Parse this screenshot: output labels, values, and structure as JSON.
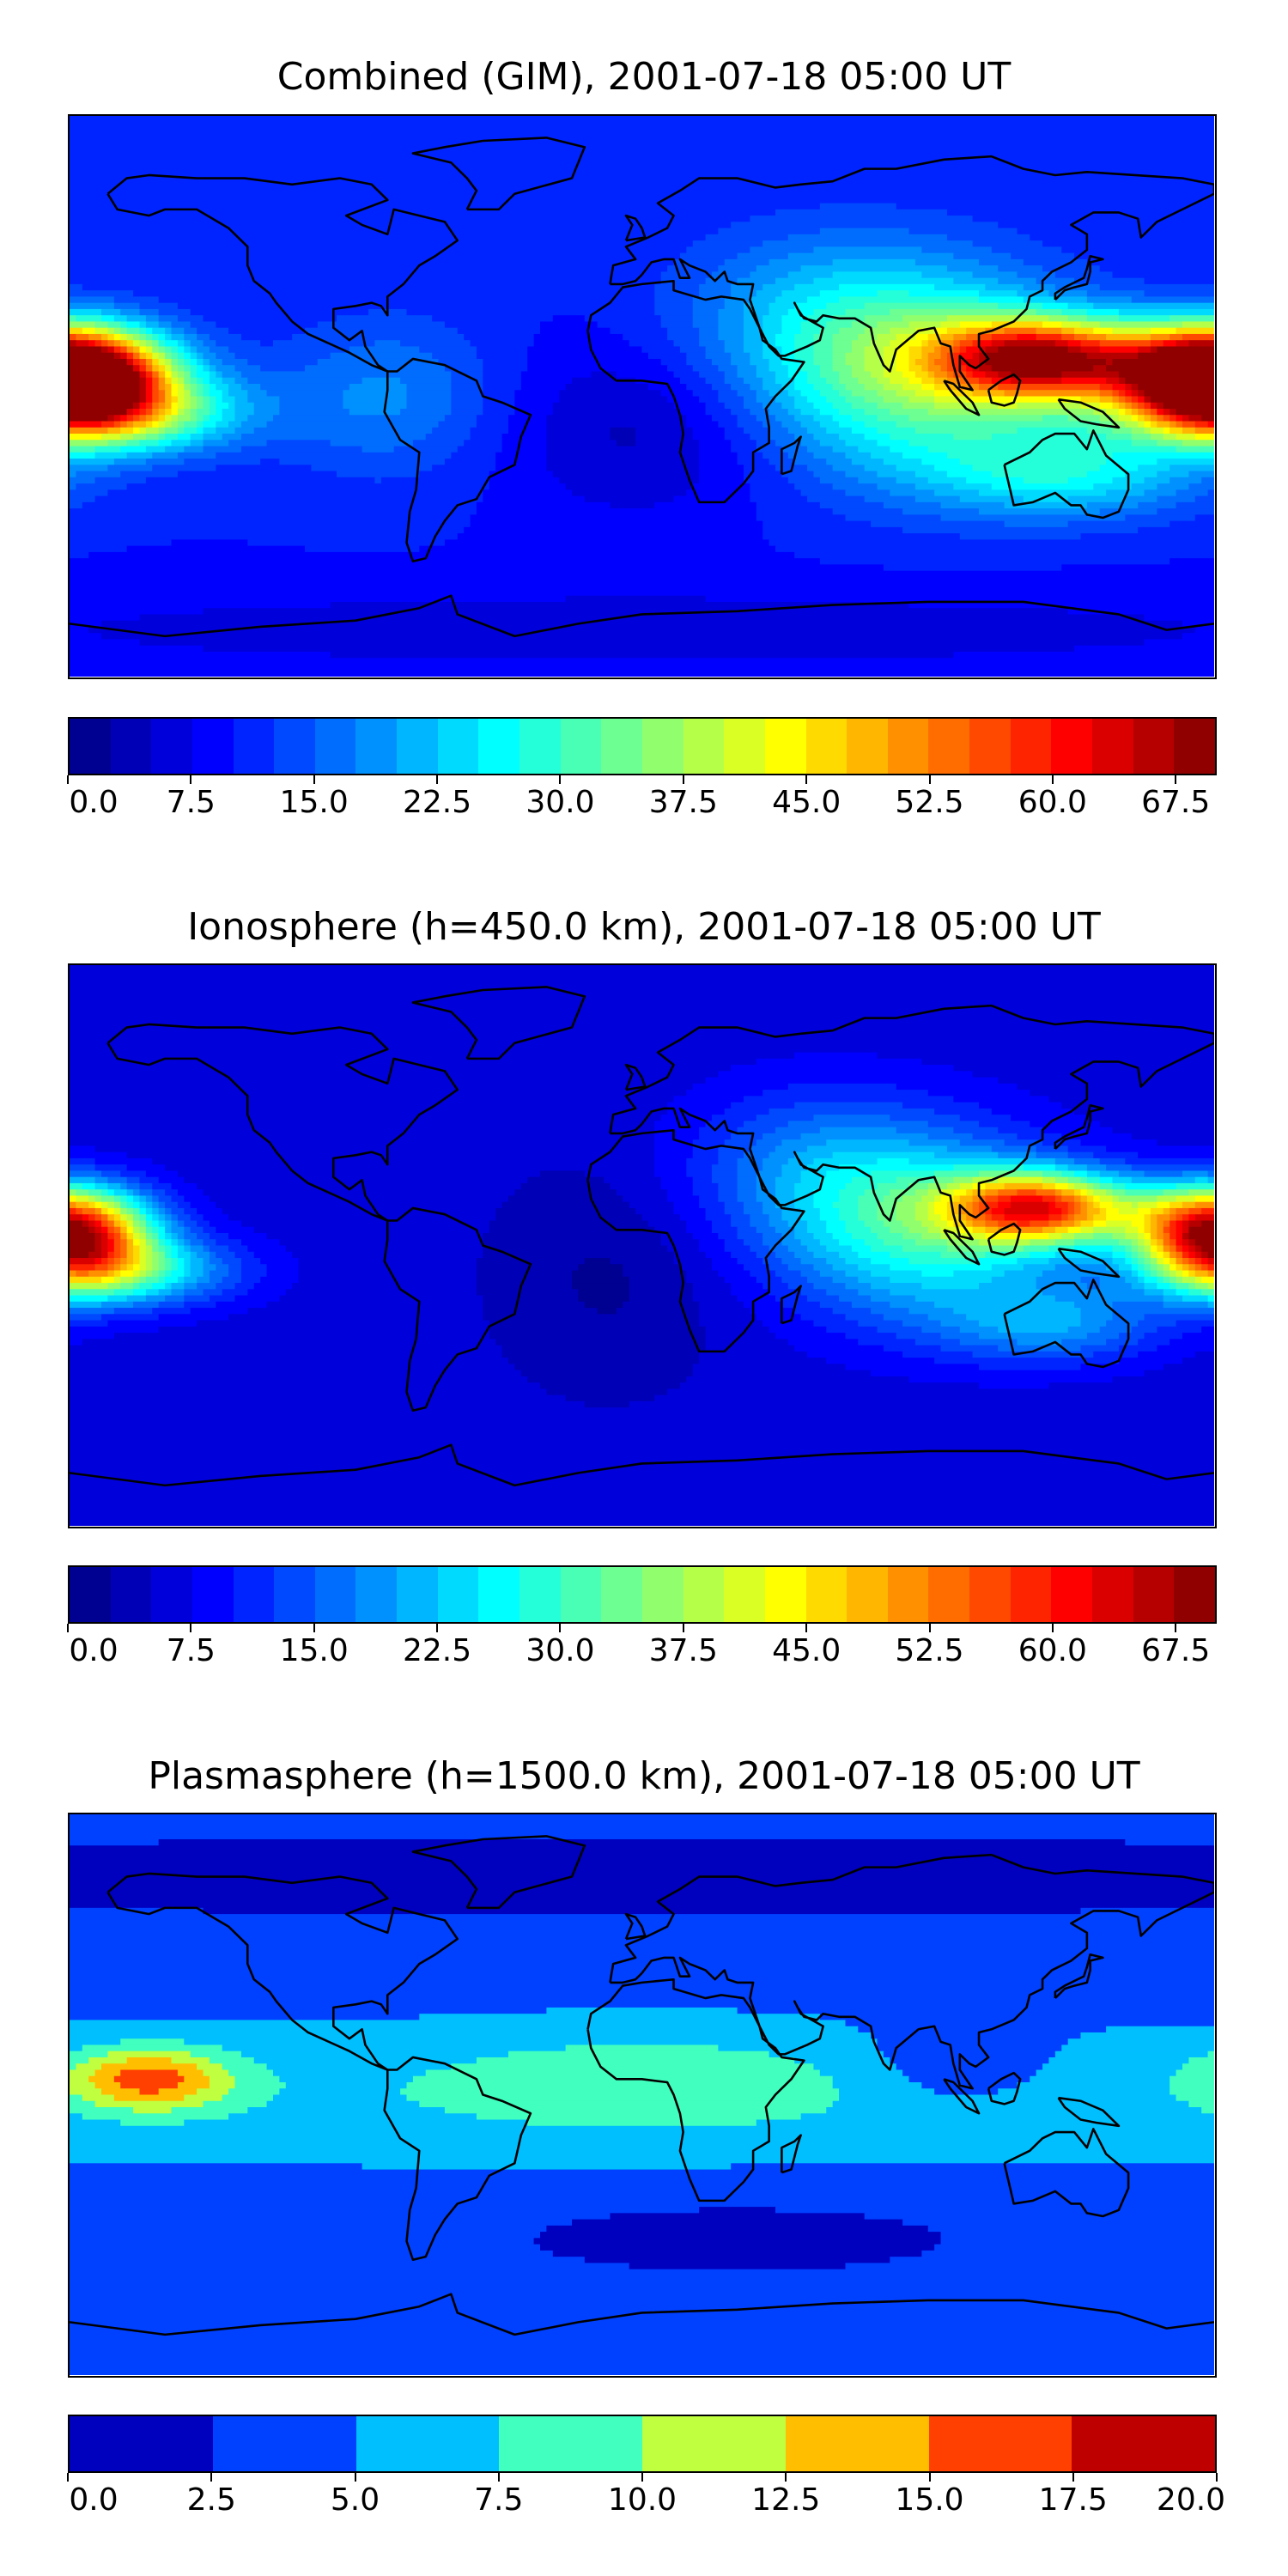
{
  "panels": [
    {
      "title": "Combined (GIM), 2001-07-18 05:00 UT",
      "colorbar": {
        "min": 0,
        "max": 70,
        "levels": 28,
        "tick_labels": [
          "0.0",
          "7.5",
          "15.0",
          "22.5",
          "30.0",
          "37.5",
          "45.0",
          "52.5",
          "60.0",
          "67.5"
        ]
      }
    },
    {
      "title": "Ionosphere  (h=450.0 km), 2001-07-18 05:00 UT",
      "colorbar": {
        "min": 0,
        "max": 70,
        "levels": 28,
        "tick_labels": [
          "0.0",
          "7.5",
          "15.0",
          "22.5",
          "30.0",
          "37.5",
          "45.0",
          "52.5",
          "60.0",
          "67.5"
        ]
      }
    },
    {
      "title": "Plasmasphere (h=1500.0 km), 2001-07-18 05:00 UT",
      "colorbar": {
        "min": 0,
        "max": 20,
        "levels": 8,
        "tick_labels": [
          "0.0",
          "2.5",
          "5.0",
          "7.5",
          "10.0",
          "12.5",
          "15.0",
          "17.5",
          "20.0"
        ]
      }
    }
  ],
  "colormap": "jet",
  "colormap_stops": [
    "#00007f",
    "#0000ff",
    "#007fff",
    "#00ffff",
    "#7fff7f",
    "#ffff00",
    "#ff7f00",
    "#ff0000",
    "#7f0000"
  ]
}
